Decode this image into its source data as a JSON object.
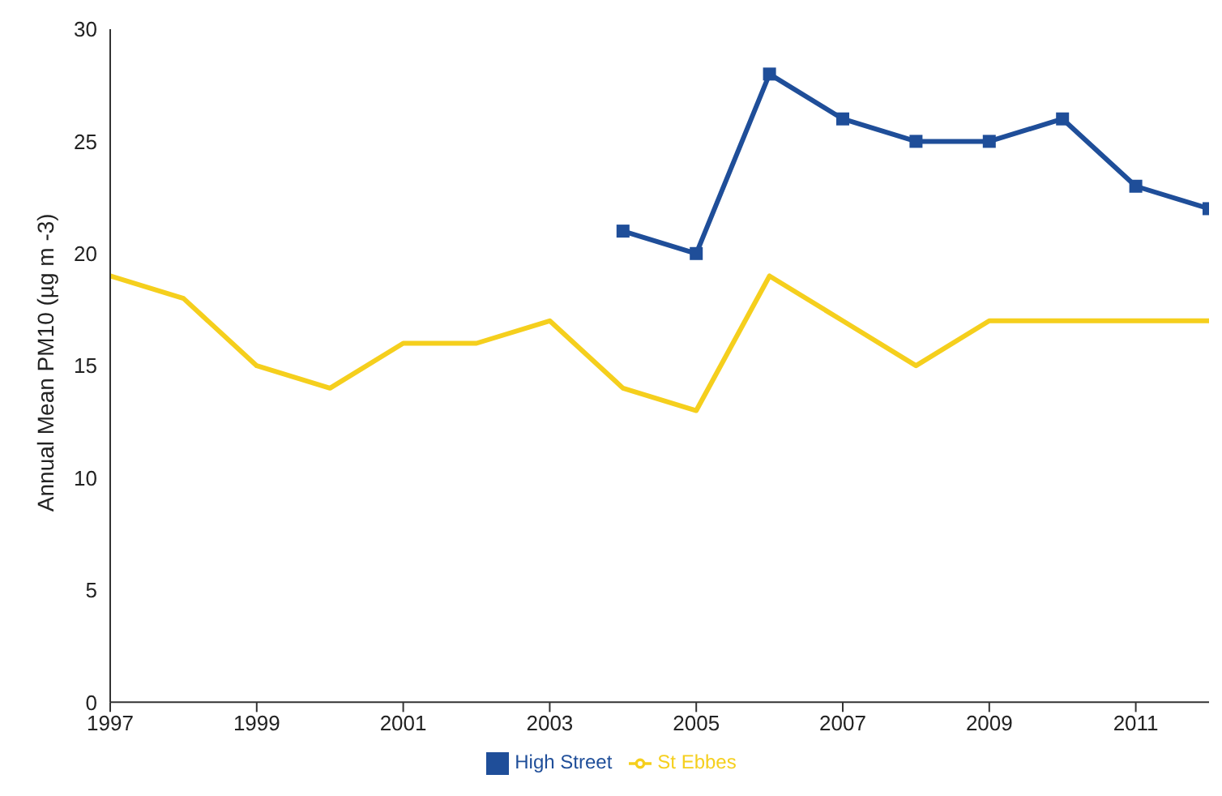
{
  "chart_data": {
    "type": "line",
    "ylabel": "Annual Mean PM10 (µg m -3)",
    "x": [
      1997,
      1998,
      1999,
      2000,
      2001,
      2002,
      2003,
      2004,
      2005,
      2006,
      2007,
      2008,
      2009,
      2010,
      2011,
      2012
    ],
    "xlim": [
      1997,
      2012
    ],
    "xticks": [
      1997,
      1999,
      2001,
      2003,
      2005,
      2007,
      2009,
      2011
    ],
    "ylim": [
      0,
      30
    ],
    "yticks": [
      0,
      5,
      10,
      15,
      20,
      25,
      30
    ],
    "grid": false,
    "legend": "bottom",
    "series": [
      {
        "name": "High Street",
        "color": "#1f4e99",
        "marker": "square",
        "values": [
          null,
          null,
          null,
          null,
          null,
          null,
          null,
          21,
          20,
          28,
          26,
          25,
          25,
          26,
          23,
          22
        ]
      },
      {
        "name": "St Ebbes",
        "color": "#f5cf1d",
        "marker": "none",
        "values": [
          19,
          18,
          15,
          14,
          16,
          16,
          17,
          14,
          13,
          19,
          17,
          15,
          17,
          17,
          17,
          17
        ]
      }
    ]
  }
}
